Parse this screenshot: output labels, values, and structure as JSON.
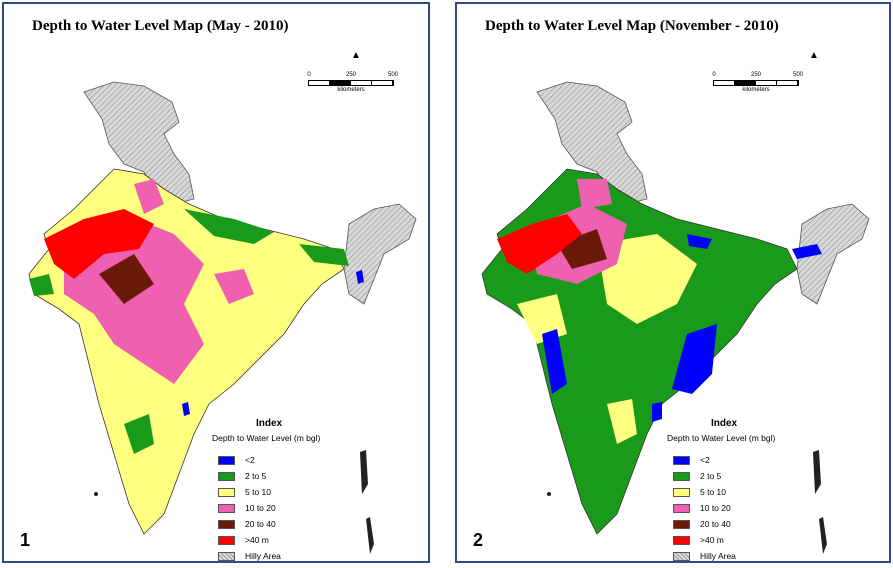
{
  "panels": [
    {
      "title": "Depth to Water Level Map (May - 2010)",
      "number": "1",
      "scale": {
        "ticks": [
          "0",
          "250",
          "500"
        ],
        "unit": "kilometers"
      },
      "legend": {
        "title": "Index",
        "subtitle": "Depth to Water Level (m bgl)",
        "items": [
          {
            "label": "<2",
            "color": "#0000ff"
          },
          {
            "label": "2 to 5",
            "color": "#1a9a1a"
          },
          {
            "label": " 5 to 10",
            "color": "#ffff80"
          },
          {
            "label": "10 to 20",
            "color": "#f060b0"
          },
          {
            "label": "20 to 40",
            "color": "#6b1a0a"
          },
          {
            "label": ">40 m",
            "color": "#ff0000"
          },
          {
            "label": "Hilly Area",
            "color": "hatch"
          }
        ]
      }
    },
    {
      "title": "Depth to Water Level Map (November - 2010)",
      "number": "2",
      "scale": {
        "ticks": [
          "0",
          "250",
          "500"
        ],
        "unit": "kilometers"
      },
      "legend": {
        "title": "Index",
        "subtitle": "Depth to Water Level (m bgl)",
        "items": [
          {
            "label": "<2",
            "color": "#0000ff"
          },
          {
            "label": "2 to 5",
            "color": "#1a9a1a"
          },
          {
            "label": " 5 to 10",
            "color": "#ffff80"
          },
          {
            "label": "10 to 20",
            "color": "#f060b0"
          },
          {
            "label": "20 to 40",
            "color": "#6b1a0a"
          },
          {
            "label": ">40 m",
            "color": "#ff0000"
          },
          {
            "label": "Hilly Area",
            "color": "hatch"
          }
        ]
      }
    }
  ],
  "colors": {
    "border": "#2f4a8c",
    "hilly": "#c8c8c8"
  }
}
